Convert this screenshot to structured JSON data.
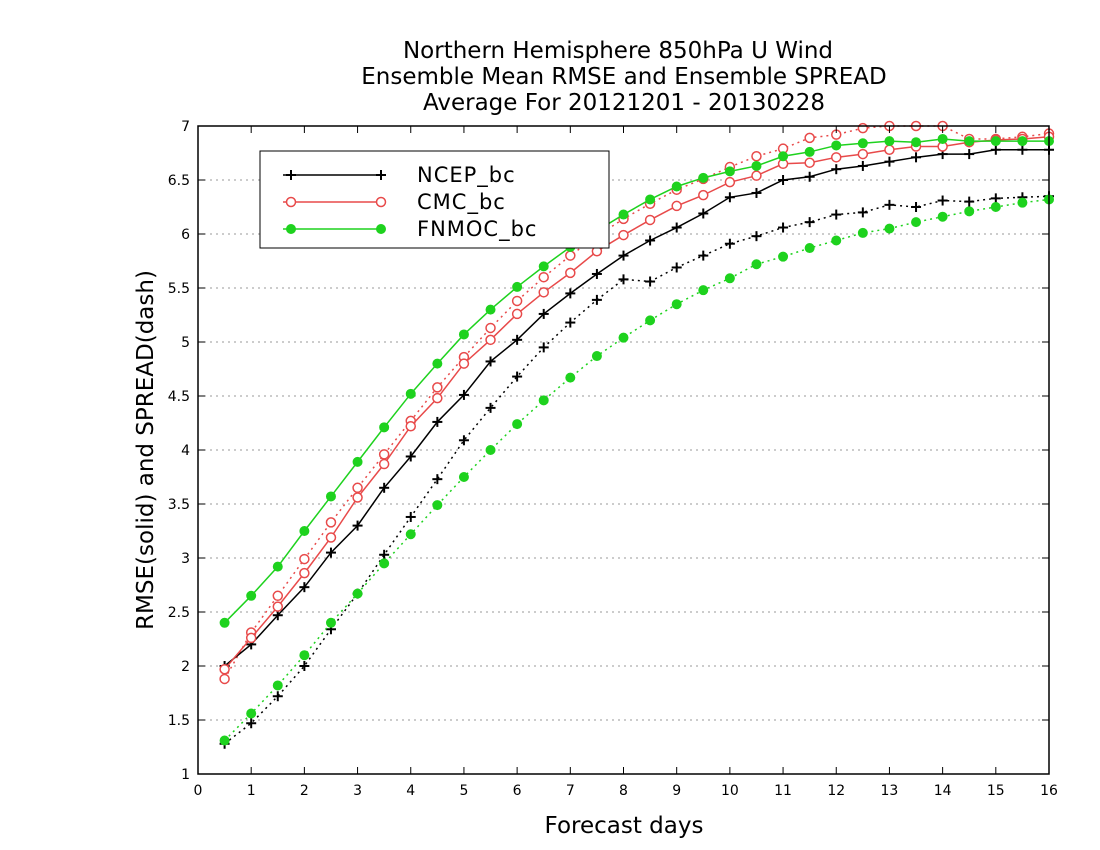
{
  "chart_data": {
    "type": "line",
    "title": [
      "Northern Hemisphere 850hPa U Wind",
      "Ensemble Mean RMSE and Ensemble SPREAD",
      "Average For 20121201 - 20130228"
    ],
    "xlabel": "Forecast days",
    "ylabel": "RMSE(solid) and SPREAD(dash)",
    "xlim": [
      0,
      16
    ],
    "ylim": [
      1,
      7
    ],
    "xticks": [
      "0",
      "1",
      "2",
      "3",
      "4",
      "5",
      "6",
      "7",
      "8",
      "9",
      "10",
      "11",
      "12",
      "13",
      "14",
      "15",
      "16"
    ],
    "yticks": [
      "1",
      "1.5",
      "2",
      "2.5",
      "3",
      "3.5",
      "4",
      "4.5",
      "5",
      "5.5",
      "6",
      "6.5",
      "7"
    ],
    "grid": "horizontal dotted",
    "legend_position": "top-left",
    "x": [
      0.5,
      1,
      1.5,
      2,
      2.5,
      3,
      3.5,
      4,
      4.5,
      5,
      5.5,
      6,
      6.5,
      7,
      7.5,
      8,
      8.5,
      9,
      9.5,
      10,
      10.5,
      11,
      11.5,
      12,
      12.5,
      13,
      13.5,
      14,
      14.5,
      15,
      15.5,
      16
    ],
    "series": [
      {
        "name": "NCEP_bc",
        "style": "solid",
        "color": "#000000",
        "marker": "plus",
        "values": [
          2.0,
          2.2,
          2.47,
          2.73,
          3.05,
          3.3,
          3.65,
          3.94,
          4.26,
          4.51,
          4.82,
          5.02,
          5.26,
          5.45,
          5.63,
          5.8,
          5.94,
          6.06,
          6.19,
          6.34,
          6.38,
          6.5,
          6.53,
          6.6,
          6.63,
          6.67,
          6.71,
          6.74,
          6.74,
          6.78,
          6.78,
          6.78
        ]
      },
      {
        "name": "CMC_bc",
        "style": "solid",
        "color": "#e84a4a",
        "marker": "open-circle",
        "values": [
          1.97,
          2.26,
          2.55,
          2.86,
          3.19,
          3.56,
          3.87,
          4.22,
          4.48,
          4.8,
          5.02,
          5.26,
          5.46,
          5.64,
          5.84,
          5.99,
          6.13,
          6.26,
          6.36,
          6.48,
          6.54,
          6.65,
          6.66,
          6.71,
          6.74,
          6.78,
          6.81,
          6.81,
          6.85,
          6.87,
          6.88,
          6.9
        ]
      },
      {
        "name": "FNMOC_bc",
        "style": "solid",
        "color": "#1ed21e",
        "marker": "filled-circle",
        "values": [
          2.4,
          2.65,
          2.92,
          3.25,
          3.57,
          3.89,
          4.21,
          4.52,
          4.8,
          5.07,
          5.3,
          5.51,
          5.7,
          5.88,
          6.03,
          6.18,
          6.32,
          6.44,
          6.52,
          6.58,
          6.63,
          6.72,
          6.76,
          6.82,
          6.84,
          6.86,
          6.85,
          6.88,
          6.86,
          6.86,
          6.86,
          6.86
        ]
      },
      {
        "name": "NCEP_bc",
        "style": "dash",
        "color": "#000000",
        "marker": "plus",
        "values": [
          1.28,
          1.47,
          1.72,
          2.0,
          2.34,
          2.67,
          3.03,
          3.38,
          3.73,
          4.09,
          4.39,
          4.68,
          4.95,
          5.18,
          5.39,
          5.58,
          5.56,
          5.69,
          5.8,
          5.91,
          5.98,
          6.06,
          6.11,
          6.18,
          6.2,
          6.27,
          6.25,
          6.31,
          6.3,
          6.33,
          6.34,
          6.35
        ]
      },
      {
        "name": "CMC_bc",
        "style": "dash",
        "color": "#e84a4a",
        "marker": "open-circle",
        "values": [
          1.88,
          2.31,
          2.65,
          2.99,
          3.33,
          3.65,
          3.96,
          4.27,
          4.58,
          4.86,
          5.13,
          5.38,
          5.6,
          5.8,
          5.98,
          6.14,
          6.28,
          6.41,
          6.51,
          6.62,
          6.72,
          6.79,
          6.89,
          6.92,
          6.98,
          7.0,
          7.0,
          7.0,
          6.88,
          6.88,
          6.9,
          6.93
        ]
      },
      {
        "name": "FNMOC_bc",
        "style": "dash",
        "color": "#1ed21e",
        "marker": "filled-circle",
        "values": [
          1.31,
          1.56,
          1.82,
          2.1,
          2.4,
          2.67,
          2.95,
          3.22,
          3.49,
          3.75,
          4.0,
          4.24,
          4.46,
          4.67,
          4.87,
          5.04,
          5.2,
          5.35,
          5.48,
          5.59,
          5.72,
          5.79,
          5.87,
          5.94,
          6.01,
          6.05,
          6.11,
          6.16,
          6.21,
          6.25,
          6.29,
          6.32
        ]
      }
    ]
  }
}
